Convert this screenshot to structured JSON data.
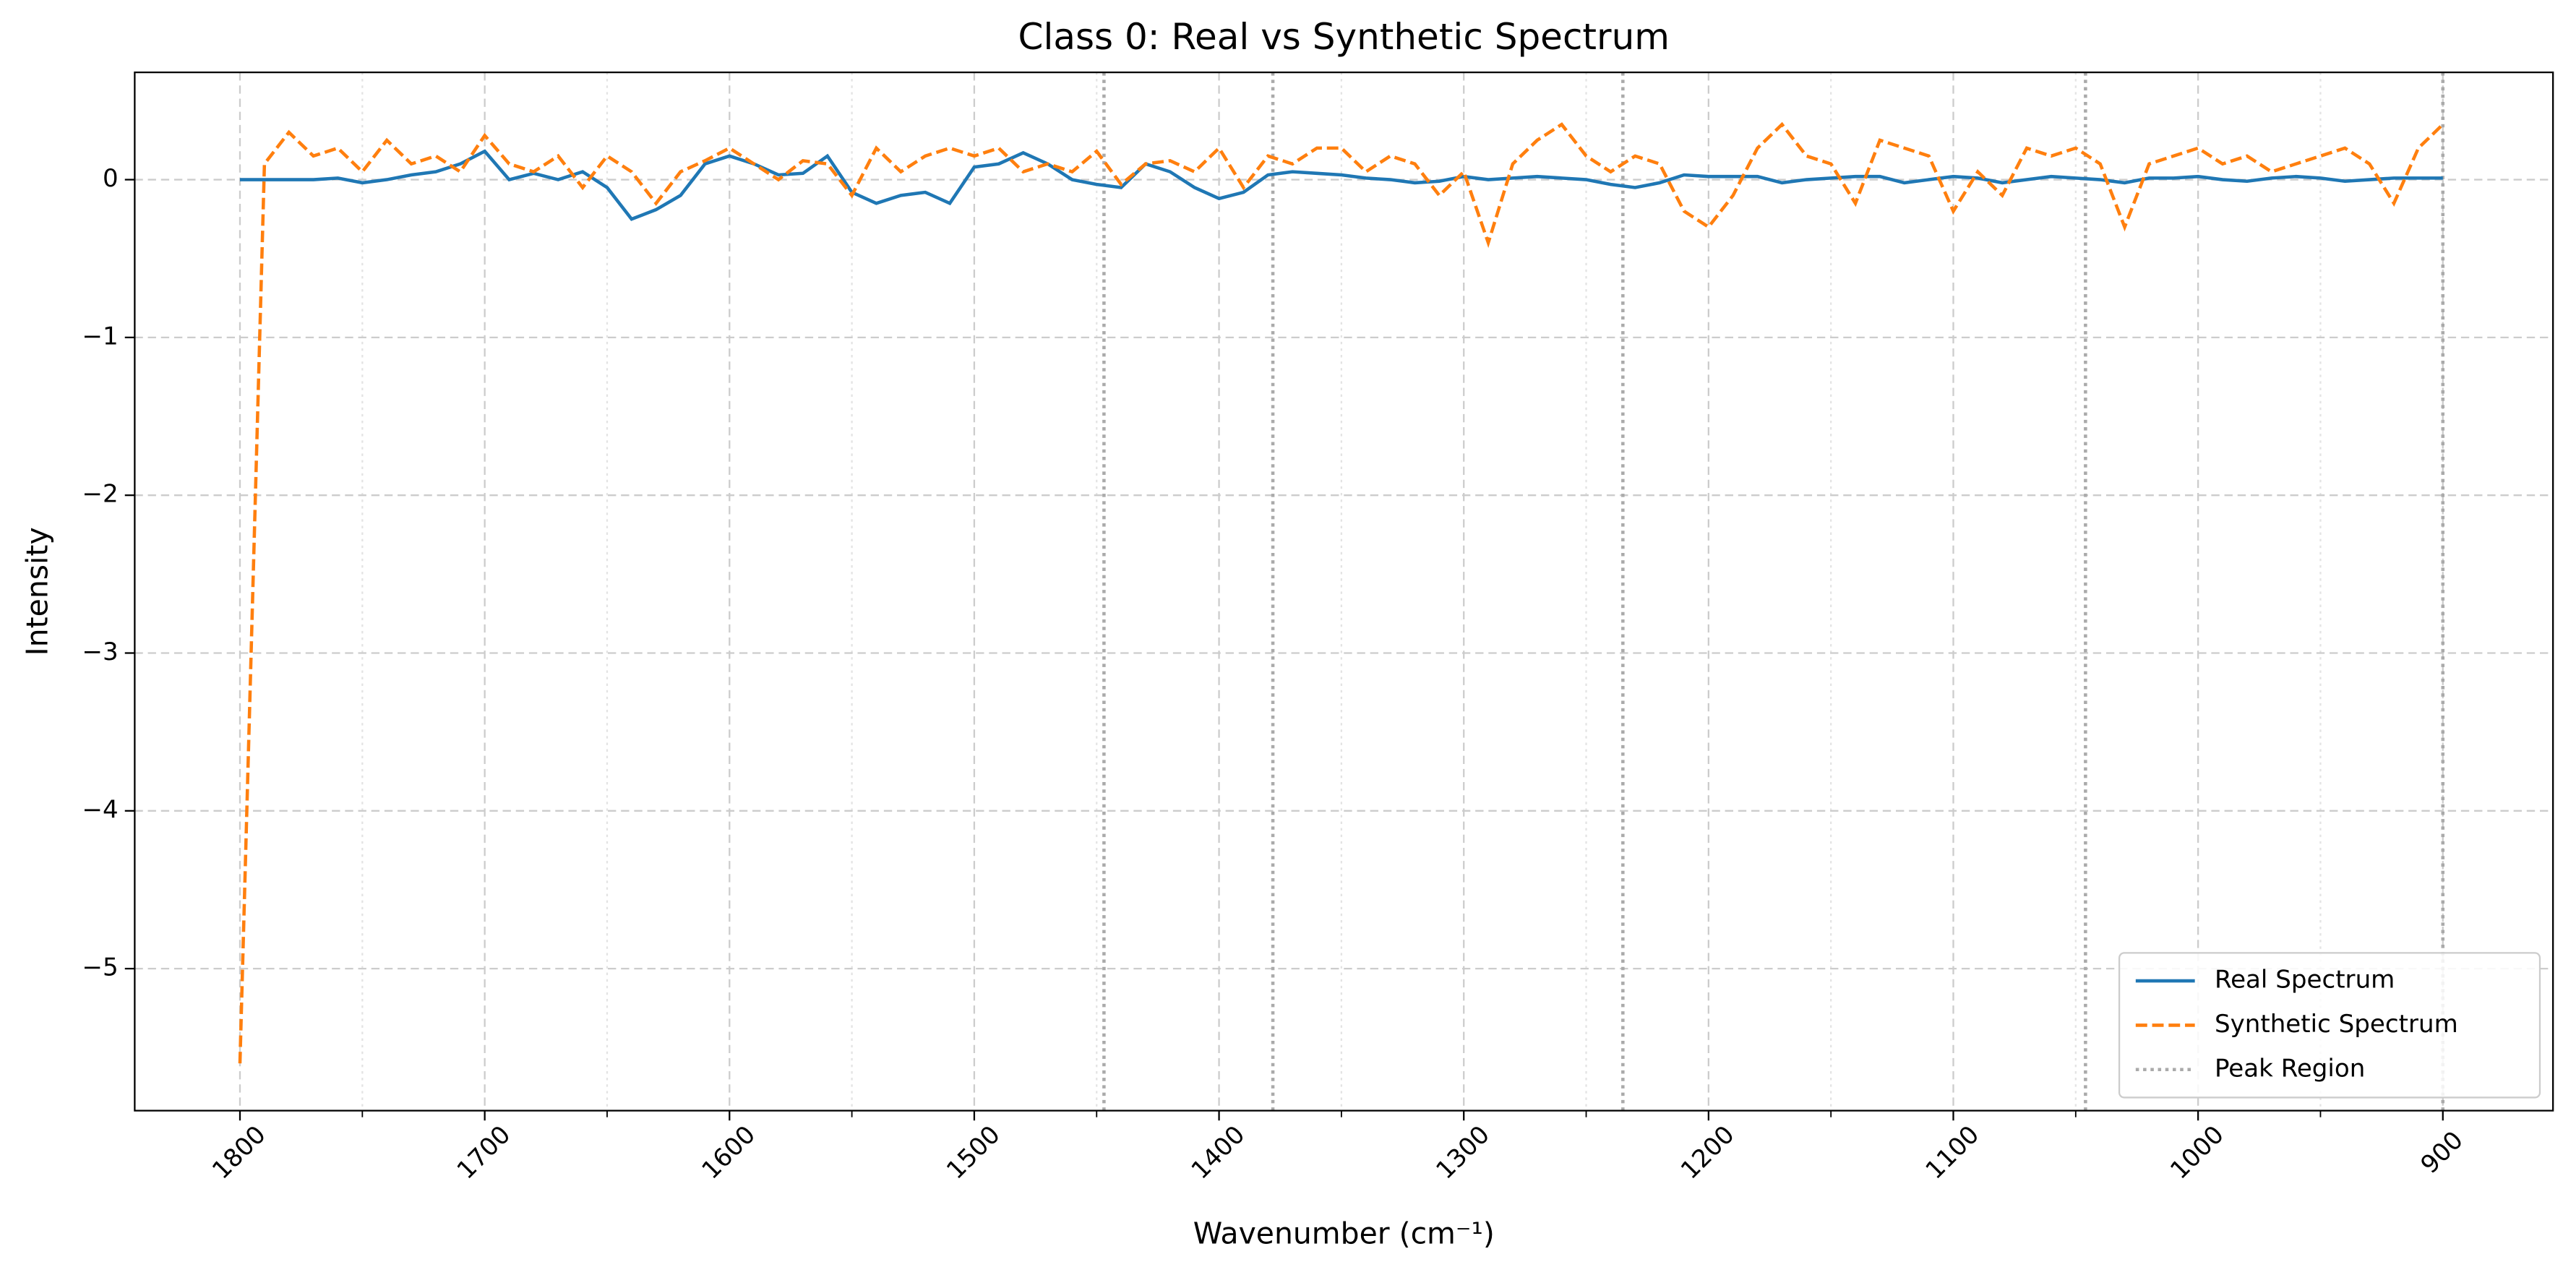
{
  "chart_data": {
    "type": "line",
    "title": "Class 0: Real vs Synthetic Spectrum",
    "xlabel": "Wavenumber (cm⁻¹)",
    "ylabel": "Intensity",
    "x": [
      1800,
      1790,
      1780,
      1770,
      1760,
      1750,
      1740,
      1730,
      1720,
      1710,
      1700,
      1690,
      1680,
      1670,
      1660,
      1650,
      1640,
      1630,
      1620,
      1610,
      1600,
      1590,
      1580,
      1570,
      1560,
      1550,
      1540,
      1530,
      1520,
      1510,
      1500,
      1490,
      1480,
      1470,
      1460,
      1450,
      1440,
      1430,
      1420,
      1410,
      1400,
      1390,
      1380,
      1370,
      1360,
      1350,
      1340,
      1330,
      1320,
      1310,
      1300,
      1290,
      1280,
      1270,
      1260,
      1250,
      1240,
      1230,
      1220,
      1210,
      1200,
      1190,
      1180,
      1170,
      1160,
      1150,
      1140,
      1130,
      1120,
      1110,
      1100,
      1090,
      1080,
      1070,
      1060,
      1050,
      1040,
      1030,
      1020,
      1010,
      1000,
      990,
      980,
      970,
      960,
      950,
      940,
      930,
      920,
      910,
      900
    ],
    "series": [
      {
        "name": "Real Spectrum",
        "color": "#1f77b4",
        "dash": "solid",
        "values": [
          0,
          0,
          0,
          0,
          0.01,
          -0.02,
          0,
          0.03,
          0.05,
          0.1,
          0.18,
          0,
          0.04,
          0,
          0.05,
          -0.05,
          -0.25,
          -0.19,
          -0.1,
          0.1,
          0.15,
          0.1,
          0.03,
          0.04,
          0.15,
          -0.08,
          -0.15,
          -0.1,
          -0.08,
          -0.15,
          0.08,
          0.1,
          0.17,
          0.1,
          0,
          -0.03,
          -0.05,
          0.1,
          0.05,
          -0.05,
          -0.12,
          -0.08,
          0.03,
          0.05,
          0.04,
          0.03,
          0.01,
          0,
          -0.02,
          -0.01,
          0.02,
          0,
          0.01,
          0.02,
          0.01,
          0,
          -0.03,
          -0.05,
          -0.02,
          0.03,
          0.02,
          0.02,
          0.02,
          -0.02,
          0,
          0.01,
          0.02,
          0.02,
          -0.02,
          0,
          0.02,
          0.01,
          -0.02,
          0,
          0.02,
          0.01,
          0,
          -0.02,
          0.01,
          0.01,
          0.02,
          0,
          -0.01,
          0.01,
          0.02,
          0.01,
          -0.01,
          0,
          0.01,
          0.01,
          0.01
        ]
      },
      {
        "name": "Synthetic Spectrum",
        "color": "#ff7f0e",
        "dash": "dashed",
        "values": [
          -5.6,
          0.1,
          0.3,
          0.15,
          0.2,
          0.05,
          0.25,
          0.1,
          0.15,
          0.05,
          0.28,
          0.1,
          0.05,
          0.15,
          -0.05,
          0.15,
          0.05,
          -0.15,
          0.05,
          0.12,
          0.2,
          0.1,
          0,
          0.12,
          0.1,
          -0.1,
          0.2,
          0.05,
          0.15,
          0.2,
          0.15,
          0.2,
          0.05,
          0.1,
          0.05,
          0.18,
          -0.03,
          0.1,
          0.12,
          0.05,
          0.2,
          -0.05,
          0.15,
          0.1,
          0.2,
          0.2,
          0.05,
          0.15,
          0.1,
          -0.1,
          0.05,
          -0.4,
          0.1,
          0.25,
          0.35,
          0.15,
          0.05,
          0.15,
          0.1,
          -0.2,
          -0.3,
          -0.1,
          0.2,
          0.35,
          0.15,
          0.1,
          -0.15,
          0.25,
          0.2,
          0.15,
          -0.2,
          0.05,
          -0.1,
          0.2,
          0.15,
          0.2,
          0.1,
          -0.3,
          0.1,
          0.15,
          0.2,
          0.1,
          0.15,
          0.05,
          0.1,
          0.15,
          0.2,
          0.1,
          -0.15,
          0.2,
          0.35
        ]
      }
    ],
    "peak_regions": {
      "name": "Peak Region",
      "color": "#aaaaaa",
      "x": [
        1447,
        1378,
        1235,
        1046,
        900
      ]
    },
    "xlim": [
      1843,
      855
    ],
    "xticks": [
      1800,
      1700,
      1600,
      1500,
      1400,
      1300,
      1200,
      1100,
      1000,
      900
    ],
    "xminorticks": [
      1750,
      1650,
      1550,
      1450,
      1350,
      1250,
      1150,
      1050,
      950
    ],
    "ylim": [
      -5.9,
      0.68
    ],
    "yticks": [
      {
        "value": -5,
        "label": "−5"
      },
      {
        "value": -4,
        "label": "−4"
      },
      {
        "value": -3,
        "label": "−3"
      },
      {
        "value": -2,
        "label": "−2"
      },
      {
        "value": -1,
        "label": "−1"
      },
      0
    ],
    "grid": true,
    "legend": "lower right"
  }
}
